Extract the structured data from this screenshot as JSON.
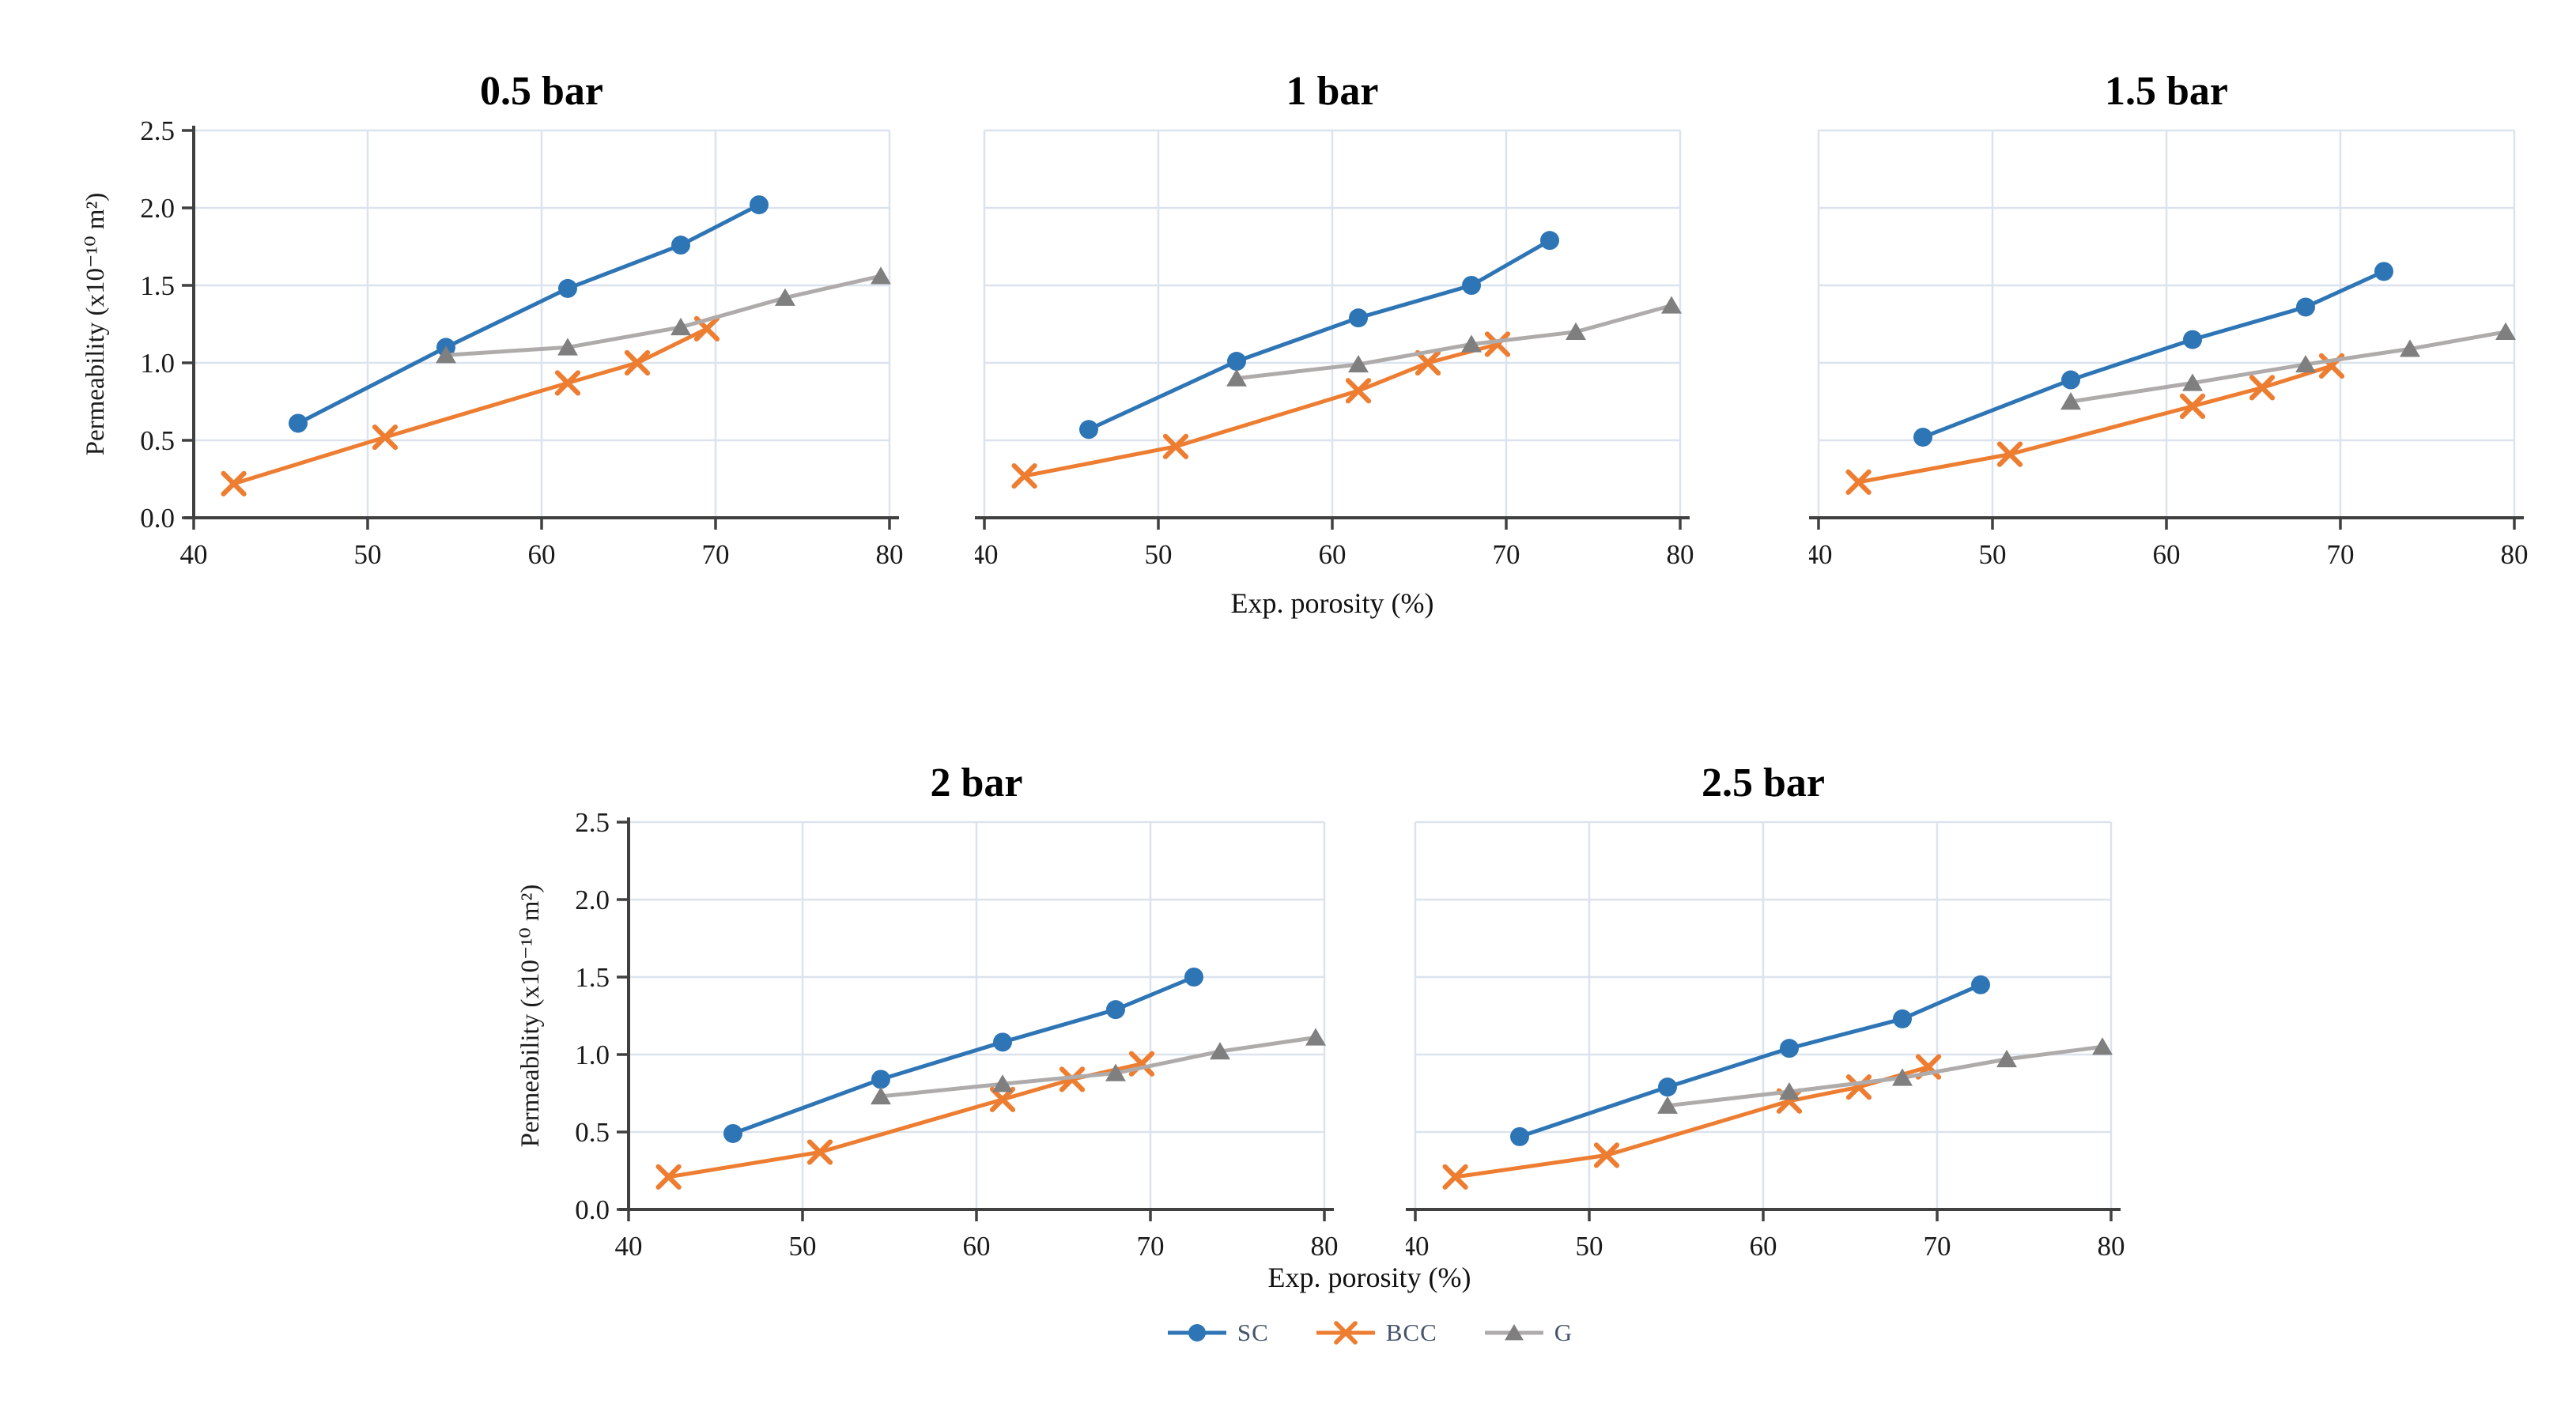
{
  "figure": {
    "xlabel": "Exp. porosity (%)",
    "ylabel": "Permeability (x10⁻¹⁰ m²)",
    "x_ticks": [
      "40",
      "50",
      "60",
      "70",
      "80"
    ],
    "y_ticks": [
      "0.0",
      "0.5",
      "1.0",
      "1.5",
      "2.0",
      "2.5"
    ],
    "xlim": [
      40,
      80
    ],
    "ylim": [
      0,
      2.5
    ],
    "grid": true,
    "legend_position": "bottom-center"
  },
  "colors": {
    "sc": "#2E75B6",
    "bcc": "#ED7D31",
    "g_line": "#AFABAB",
    "g_marker": "#7F7F7F",
    "grid": "#DCE3EE",
    "axis": "#404040",
    "tick_text": "#1A1A1A",
    "legend_text": "#44546A",
    "title_text": "#000000"
  },
  "legend": [
    {
      "label": "SC",
      "marker": "circle",
      "color": "#2E75B6"
    },
    {
      "label": "BCC",
      "marker": "x",
      "color": "#ED7D31"
    },
    {
      "label": "G",
      "marker": "triangle",
      "color": "#AFABAB",
      "marker_color": "#7F7F7F"
    }
  ],
  "chart_data": [
    {
      "type": "line",
      "title": "0.5 bar",
      "show_y_axis": true,
      "xlabel": "Exp. porosity (%)",
      "series": [
        {
          "name": "SC",
          "marker": "circle",
          "color": "#2E75B6",
          "x": [
            46,
            54.5,
            61.5,
            68,
            72.5
          ],
          "y": [
            0.61,
            1.1,
            1.48,
            1.76,
            2.02
          ]
        },
        {
          "name": "BCC",
          "marker": "x",
          "color": "#ED7D31",
          "x": [
            42.3,
            51,
            61.5,
            65.5,
            69.5
          ],
          "y": [
            0.22,
            0.52,
            0.87,
            1.0,
            1.22
          ]
        },
        {
          "name": "G",
          "marker": "triangle",
          "color": "#AFABAB",
          "marker_color": "#7F7F7F",
          "x": [
            54.5,
            61.5,
            68,
            74,
            79.5
          ],
          "y": [
            1.05,
            1.1,
            1.23,
            1.42,
            1.56
          ]
        }
      ]
    },
    {
      "type": "line",
      "title": "1 bar",
      "show_y_axis": false,
      "xlabel": "Exp. porosity (%)",
      "series": [
        {
          "name": "SC",
          "marker": "circle",
          "color": "#2E75B6",
          "x": [
            46,
            54.5,
            61.5,
            68,
            72.5
          ],
          "y": [
            0.57,
            1.01,
            1.29,
            1.5,
            1.79
          ]
        },
        {
          "name": "BCC",
          "marker": "x",
          "color": "#ED7D31",
          "x": [
            42.3,
            51,
            61.5,
            65.5,
            69.5
          ],
          "y": [
            0.27,
            0.46,
            0.82,
            1.0,
            1.12
          ]
        },
        {
          "name": "G",
          "marker": "triangle",
          "color": "#AFABAB",
          "marker_color": "#7F7F7F",
          "x": [
            54.5,
            61.5,
            68,
            74,
            79.5
          ],
          "y": [
            0.9,
            0.99,
            1.12,
            1.2,
            1.37
          ]
        }
      ]
    },
    {
      "type": "line",
      "title": "1.5 bar",
      "show_y_axis": false,
      "xlabel": "Exp. porosity (%)",
      "series": [
        {
          "name": "SC",
          "marker": "circle",
          "color": "#2E75B6",
          "x": [
            46,
            54.5,
            61.5,
            68,
            72.5
          ],
          "y": [
            0.52,
            0.89,
            1.15,
            1.36,
            1.59
          ]
        },
        {
          "name": "BCC",
          "marker": "x",
          "color": "#ED7D31",
          "x": [
            42.3,
            51,
            61.5,
            65.5,
            69.5
          ],
          "y": [
            0.23,
            0.41,
            0.72,
            0.84,
            0.98
          ]
        },
        {
          "name": "G",
          "marker": "triangle",
          "color": "#AFABAB",
          "marker_color": "#7F7F7F",
          "x": [
            54.5,
            61.5,
            68,
            74,
            79.5
          ],
          "y": [
            0.75,
            0.87,
            0.99,
            1.09,
            1.2
          ]
        }
      ]
    },
    {
      "type": "line",
      "title": "2 bar",
      "show_y_axis": true,
      "xlabel": "Exp. porosity (%)",
      "series": [
        {
          "name": "SC",
          "marker": "circle",
          "color": "#2E75B6",
          "x": [
            46,
            54.5,
            61.5,
            68,
            72.5
          ],
          "y": [
            0.49,
            0.84,
            1.08,
            1.29,
            1.5
          ]
        },
        {
          "name": "BCC",
          "marker": "x",
          "color": "#ED7D31",
          "x": [
            42.3,
            51,
            61.5,
            65.5,
            69.5
          ],
          "y": [
            0.21,
            0.37,
            0.71,
            0.84,
            0.94
          ]
        },
        {
          "name": "G",
          "marker": "triangle",
          "color": "#AFABAB",
          "marker_color": "#7F7F7F",
          "x": [
            54.5,
            61.5,
            68,
            74,
            79.5
          ],
          "y": [
            0.73,
            0.81,
            0.88,
            1.02,
            1.11
          ]
        }
      ]
    },
    {
      "type": "line",
      "title": "2.5 bar",
      "show_y_axis": false,
      "xlabel": "Exp. porosity (%)",
      "series": [
        {
          "name": "SC",
          "marker": "circle",
          "color": "#2E75B6",
          "x": [
            46,
            54.5,
            61.5,
            68,
            72.5
          ],
          "y": [
            0.47,
            0.79,
            1.04,
            1.23,
            1.45
          ]
        },
        {
          "name": "BCC",
          "marker": "x",
          "color": "#ED7D31",
          "x": [
            42.3,
            51,
            61.5,
            65.5,
            69.5
          ],
          "y": [
            0.21,
            0.35,
            0.7,
            0.79,
            0.92
          ]
        },
        {
          "name": "G",
          "marker": "triangle",
          "color": "#AFABAB",
          "marker_color": "#7F7F7F",
          "x": [
            54.5,
            61.5,
            68,
            74,
            79.5
          ],
          "y": [
            0.67,
            0.76,
            0.85,
            0.97,
            1.05
          ]
        }
      ]
    }
  ]
}
